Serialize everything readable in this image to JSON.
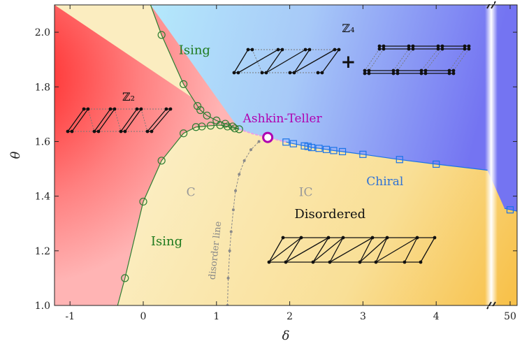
{
  "chart_data": {
    "type": "scatter",
    "xlabel": "δ",
    "ylabel": "θ",
    "xlim": [
      -1.2,
      50.5
    ],
    "ylim": [
      1.0,
      2.1
    ],
    "x_ticks": [
      {
        "v": -1,
        "label": "-1"
      },
      {
        "v": 0,
        "label": "0"
      },
      {
        "v": 1,
        "label": "1"
      },
      {
        "v": 2,
        "label": "2"
      },
      {
        "v": 3,
        "label": "3"
      },
      {
        "v": 4,
        "label": "4"
      },
      {
        "v": 50,
        "label": "50"
      }
    ],
    "y_ticks": [
      {
        "v": 1.0,
        "label": "1.0"
      },
      {
        "v": 1.2,
        "label": "1.2"
      },
      {
        "v": 1.4,
        "label": "1.4"
      },
      {
        "v": 1.6,
        "label": "1.6"
      },
      {
        "v": 1.8,
        "label": "1.8"
      },
      {
        "v": 2.0,
        "label": "2.0"
      }
    ],
    "axis_break": {
      "after": 4.7,
      "resume": 49.6
    },
    "regions": [
      {
        "label": "ℤ₂",
        "color": "#ff3030"
      },
      {
        "label": "ℤ₄",
        "color": "#8a8af5"
      },
      {
        "label": "Disordered",
        "color": "#fbe7a6"
      }
    ],
    "annotations": [
      {
        "text": "Ising",
        "color": "#1e7a1e",
        "x": 0.7,
        "y": 1.92
      },
      {
        "text": "ℤ₂",
        "color": "#111111",
        "x": -0.2,
        "y": 1.75
      },
      {
        "text": "ℤ₄",
        "color": "#111111",
        "x": 2.8,
        "y": 2.0
      },
      {
        "text": "+",
        "color": "#111111",
        "x": 2.8,
        "y": 1.87
      },
      {
        "text": "Ashkin-Teller",
        "color": "#b000b0",
        "x": 1.9,
        "y": 1.67
      },
      {
        "text": "C",
        "color": "#999999",
        "x": 0.65,
        "y": 1.4
      },
      {
        "text": "IC",
        "color": "#999999",
        "x": 2.22,
        "y": 1.4
      },
      {
        "text": "Chiral",
        "color": "#2f72d6",
        "x": 3.3,
        "y": 1.44
      },
      {
        "text": "Disordered",
        "color": "#111111",
        "x": 2.55,
        "y": 1.32
      },
      {
        "text": "Ising",
        "color": "#1e7a1e",
        "x": 0.32,
        "y": 1.22
      },
      {
        "text": "disorder line",
        "color": "#888888",
        "x": 1.02,
        "y": 1.2
      }
    ],
    "series": [
      {
        "name": "Ising",
        "marker": "circle",
        "color": "#2e7d32",
        "points": [
          [
            -0.25,
            1.1
          ],
          [
            0.0,
            1.38
          ],
          [
            0.25,
            1.53
          ],
          [
            0.55,
            1.63
          ],
          [
            0.72,
            1.653
          ],
          [
            0.8,
            1.655
          ],
          [
            0.92,
            1.658
          ],
          [
            1.05,
            1.66
          ],
          [
            1.15,
            1.655
          ],
          [
            1.25,
            1.648
          ],
          [
            1.31,
            1.645
          ],
          [
            1.22,
            1.655
          ],
          [
            1.12,
            1.665
          ],
          [
            1.0,
            1.677
          ],
          [
            0.87,
            1.695
          ],
          [
            0.78,
            1.715
          ],
          [
            0.74,
            1.73
          ],
          [
            0.55,
            1.81
          ],
          [
            0.25,
            1.99
          ]
        ]
      },
      {
        "name": "Chiral",
        "marker": "square",
        "color": "#1a73e8",
        "points": [
          [
            1.95,
            1.598
          ],
          [
            2.05,
            1.592
          ],
          [
            2.2,
            1.584
          ],
          [
            2.25,
            1.582
          ],
          [
            2.3,
            1.578
          ],
          [
            2.4,
            1.575
          ],
          [
            2.5,
            1.571
          ],
          [
            2.6,
            1.567
          ],
          [
            2.72,
            1.563
          ],
          [
            3.0,
            1.553
          ],
          [
            3.5,
            1.534
          ],
          [
            4.0,
            1.517
          ],
          [
            50.0,
            1.35
          ]
        ]
      },
      {
        "name": "Ashkin-Teller",
        "marker": "open-circle",
        "color": "#b000b0",
        "points": [
          [
            1.7,
            1.615
          ]
        ]
      },
      {
        "name": "disorder line",
        "marker": "dot",
        "color": "#8a8a8a",
        "points": [
          [
            1.15,
            1.0
          ],
          [
            1.16,
            1.1
          ],
          [
            1.18,
            1.2
          ],
          [
            1.2,
            1.27
          ],
          [
            1.23,
            1.35
          ],
          [
            1.26,
            1.42
          ],
          [
            1.31,
            1.48
          ],
          [
            1.38,
            1.53
          ],
          [
            1.47,
            1.57
          ],
          [
            1.58,
            1.6
          ]
        ]
      }
    ]
  }
}
